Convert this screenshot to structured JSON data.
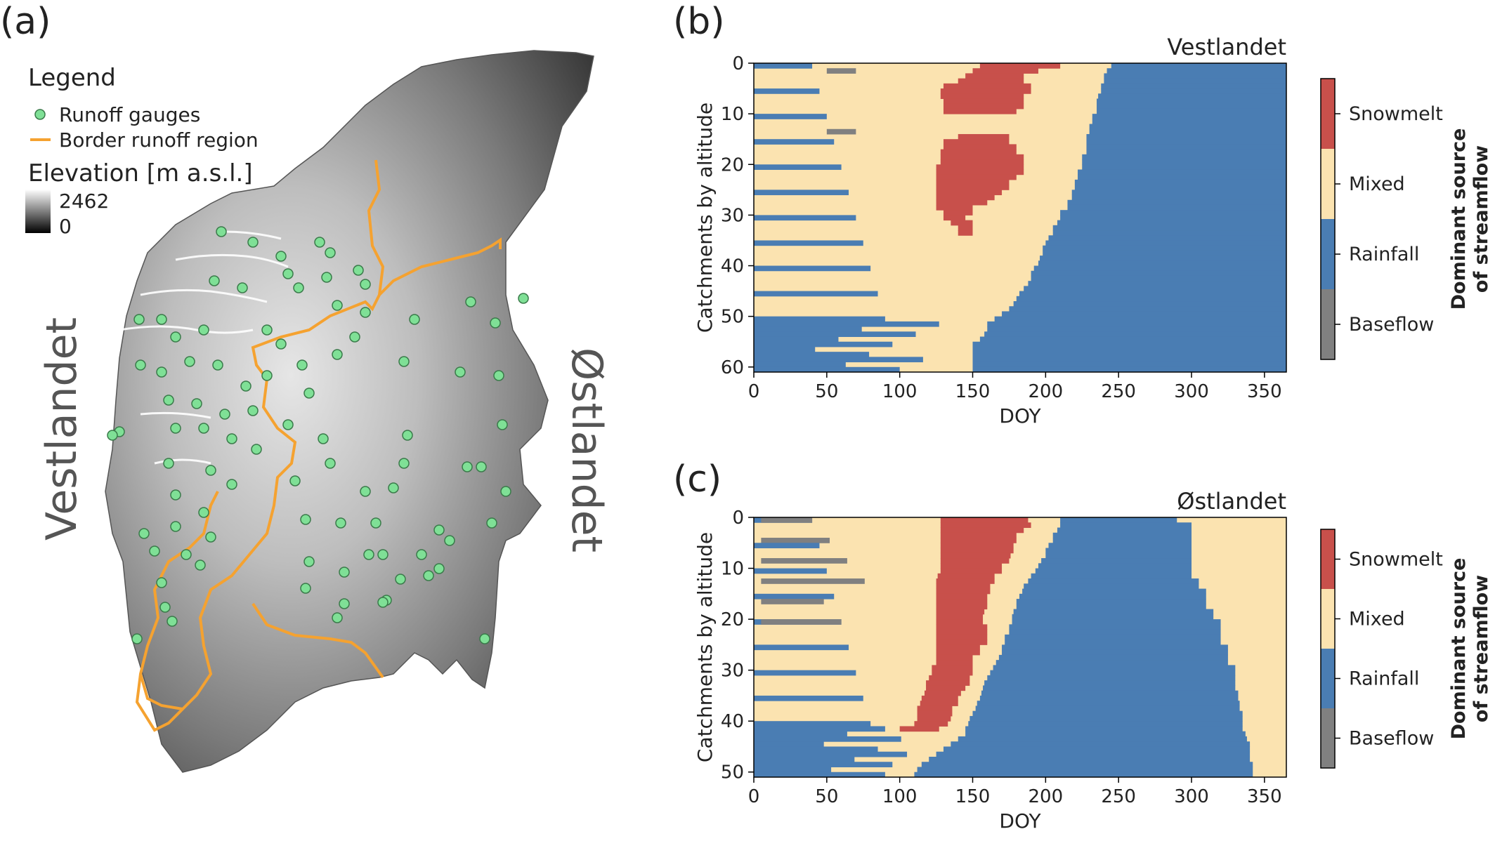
{
  "figure": {
    "panel_labels": [
      "(a)",
      "(b)",
      "(c)"
    ]
  },
  "map": {
    "legend": {
      "title": "Legend",
      "gauges_label": "Runoff gauges",
      "border_label": "Border runoff region",
      "elevation_title": "Elevation [m a.s.l.]",
      "elevation_max": "2462",
      "elevation_min": "0"
    },
    "region_west": "Vestlandet",
    "region_east": "Østlandet",
    "colors": {
      "gauge": "#7fe096",
      "border": "#f5a230"
    }
  },
  "chart_data": [
    {
      "type": "heatmap",
      "title": "Vestlandet",
      "xlabel": "DOY",
      "ylabel": "Catchments by altitude",
      "xlim": [
        0,
        365
      ],
      "ylim": [
        61,
        0
      ],
      "xticks": [
        0,
        50,
        100,
        150,
        200,
        250,
        300,
        350
      ],
      "yticks": [
        0,
        10,
        20,
        30,
        40,
        50,
        60
      ],
      "n_catchments": 61,
      "categories": [
        "Snowmelt",
        "Mixed",
        "Rainfall",
        "Baseflow"
      ],
      "category_colors": {
        "Snowmelt": "#c8504b",
        "Mixed": "#fbe3b0",
        "Rainfall": "#4a7db3",
        "Baseflow": "#808080"
      },
      "colorbar_title": "Dominant source of streamflow",
      "snowmelt_start": [
        155,
        150,
        145,
        140,
        130,
        128,
        128,
        130,
        130,
        130,
        200,
        200,
        200,
        200,
        140,
        130,
        130,
        128,
        128,
        128,
        125,
        125,
        125,
        125,
        125,
        125,
        125,
        125,
        125,
        130,
        130,
        135,
        140,
        140,
        145,
        200,
        200,
        200,
        200,
        200,
        200,
        200,
        200,
        200,
        200,
        200,
        200,
        200,
        200,
        200,
        200,
        200,
        200,
        200,
        200,
        200,
        200,
        200,
        200,
        200,
        200
      ],
      "snowmelt_end": [
        210,
        195,
        185,
        185,
        190,
        190,
        185,
        185,
        185,
        180,
        0,
        0,
        0,
        0,
        175,
        175,
        180,
        180,
        185,
        185,
        185,
        185,
        180,
        175,
        175,
        170,
        165,
        160,
        150,
        150,
        145,
        150,
        150,
        150,
        145,
        0,
        0,
        0,
        0,
        0,
        0,
        0,
        0,
        0,
        0,
        0,
        0,
        0,
        0,
        0,
        0,
        0,
        0,
        0,
        0,
        0,
        0,
        0,
        0,
        0,
        0
      ],
      "rain_start": [
        245,
        242,
        240,
        240,
        238,
        238,
        236,
        235,
        235,
        235,
        232,
        232,
        230,
        230,
        228,
        228,
        228,
        228,
        225,
        225,
        225,
        222,
        222,
        220,
        220,
        218,
        218,
        215,
        215,
        210,
        210,
        208,
        205,
        205,
        202,
        200,
        198,
        198,
        196,
        195,
        192,
        190,
        190,
        188,
        185,
        182,
        180,
        178,
        175,
        170,
        165,
        160,
        160,
        158,
        155,
        150,
        150,
        150,
        150,
        150,
        150
      ],
      "rain_end": [
        365,
        365,
        365,
        365,
        365,
        365,
        365,
        365,
        365,
        365,
        365,
        365,
        365,
        365,
        365,
        365,
        365,
        365,
        365,
        365,
        365,
        365,
        365,
        365,
        365,
        365,
        365,
        365,
        365,
        365,
        365,
        365,
        365,
        365,
        365,
        365,
        365,
        365,
        365,
        365,
        365,
        365,
        365,
        365,
        365,
        365,
        365,
        365,
        365,
        365,
        365,
        365,
        365,
        365,
        365,
        365,
        365,
        365,
        365,
        365,
        365
      ]
    },
    {
      "type": "heatmap",
      "title": "Østlandet",
      "xlabel": "DOY",
      "ylabel": "Catchments by altitude",
      "xlim": [
        0,
        365
      ],
      "ylim": [
        51,
        0
      ],
      "xticks": [
        0,
        50,
        100,
        150,
        200,
        250,
        300,
        350
      ],
      "yticks": [
        0,
        10,
        20,
        30,
        40,
        50
      ],
      "n_catchments": 51,
      "categories": [
        "Snowmelt",
        "Mixed",
        "Rainfall",
        "Baseflow"
      ],
      "category_colors": {
        "Snowmelt": "#c8504b",
        "Mixed": "#fbe3b0",
        "Rainfall": "#4a7db3",
        "Baseflow": "#808080"
      },
      "colorbar_title": "Dominant source of streamflow",
      "snowmelt_start": [
        128,
        128,
        128,
        128,
        128,
        128,
        128,
        128,
        128,
        128,
        128,
        126,
        125,
        125,
        125,
        125,
        125,
        125,
        125,
        125,
        125,
        125,
        125,
        125,
        125,
        125,
        125,
        125,
        125,
        122,
        122,
        120,
        118,
        118,
        117,
        115,
        114,
        112,
        112,
        112,
        110,
        100,
        200,
        200,
        200,
        200,
        200,
        200,
        200,
        200,
        200
      ],
      "snowmelt_end": [
        188,
        190,
        185,
        180,
        180,
        178,
        178,
        176,
        175,
        170,
        170,
        165,
        165,
        162,
        162,
        160,
        160,
        160,
        158,
        157,
        157,
        160,
        160,
        160,
        160,
        155,
        155,
        150,
        150,
        150,
        150,
        148,
        148,
        145,
        142,
        140,
        140,
        136,
        136,
        135,
        133,
        127,
        0,
        0,
        0,
        0,
        0,
        0,
        0,
        0,
        0
      ],
      "rain_start": [
        210,
        210,
        208,
        205,
        205,
        202,
        200,
        200,
        197,
        195,
        193,
        190,
        188,
        185,
        184,
        182,
        180,
        180,
        178,
        177,
        177,
        175,
        175,
        172,
        172,
        170,
        170,
        168,
        166,
        164,
        162,
        160,
        158,
        157,
        156,
        155,
        153,
        152,
        150,
        148,
        147,
        145,
        145,
        140,
        135,
        130,
        125,
        120,
        115,
        112,
        110
      ],
      "rain_end": [
        290,
        300,
        300,
        300,
        300,
        300,
        300,
        300,
        300,
        300,
        300,
        300,
        305,
        305,
        310,
        310,
        310,
        310,
        315,
        315,
        320,
        320,
        320,
        320,
        320,
        325,
        325,
        325,
        325,
        330,
        330,
        330,
        330,
        330,
        332,
        332,
        333,
        333,
        335,
        335,
        335,
        335,
        337,
        338,
        340,
        340,
        340,
        340,
        342,
        342,
        342
      ]
    }
  ]
}
